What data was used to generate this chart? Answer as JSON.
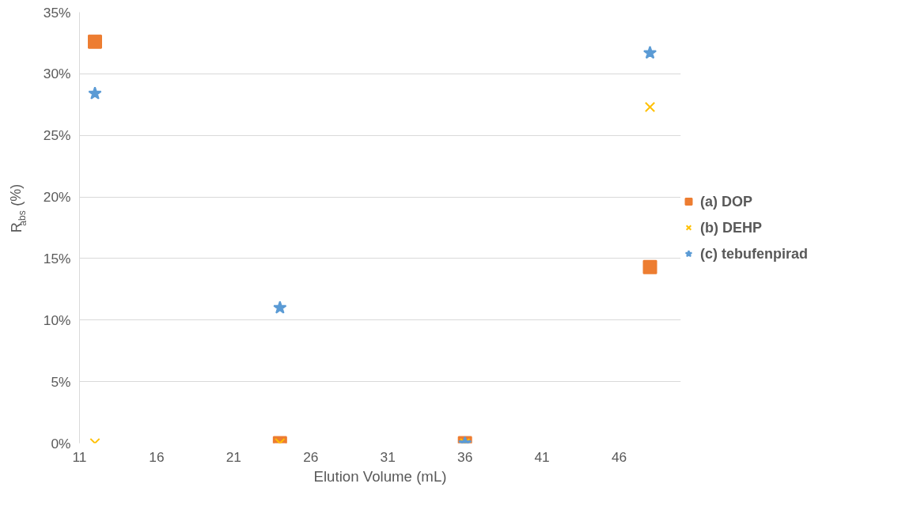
{
  "chart_data": {
    "type": "scatter",
    "xlabel": "Elution Volume (mL)",
    "ylabel": "R$_{abs}$ (%)",
    "xlim": [
      11,
      50
    ],
    "xticks": [
      11,
      16,
      21,
      26,
      31,
      36,
      41,
      46
    ],
    "ylim": [
      0,
      35
    ],
    "yticks": [
      {
        "value": 0,
        "label": "0%"
      },
      {
        "value": 5,
        "label": "5%"
      },
      {
        "value": 10,
        "label": "10%"
      },
      {
        "value": 15,
        "label": "15%"
      },
      {
        "value": 20,
        "label": "20%"
      },
      {
        "value": 25,
        "label": "25%"
      },
      {
        "value": 30,
        "label": "30%"
      },
      {
        "value": 35,
        "label": "35%"
      }
    ],
    "grid": "y",
    "legend": "right",
    "series": [
      {
        "name": "(a) DOP",
        "color": "#ed7d31",
        "marker": "square",
        "x": [
          12,
          24,
          36,
          48
        ],
        "values": [
          32.6,
          0,
          0,
          14.3
        ]
      },
      {
        "name": "(b) DEHP",
        "color": "#ffc000",
        "marker": "cross",
        "x": [
          12,
          24,
          36,
          48
        ],
        "values": [
          0,
          0,
          0,
          27.3
        ]
      },
      {
        "name": "(c) tebufenpirad",
        "color": "#5b9bd5",
        "marker": "star",
        "x": [
          12,
          24,
          36,
          48
        ],
        "values": [
          28.4,
          11.0,
          0,
          31.7
        ]
      }
    ]
  }
}
